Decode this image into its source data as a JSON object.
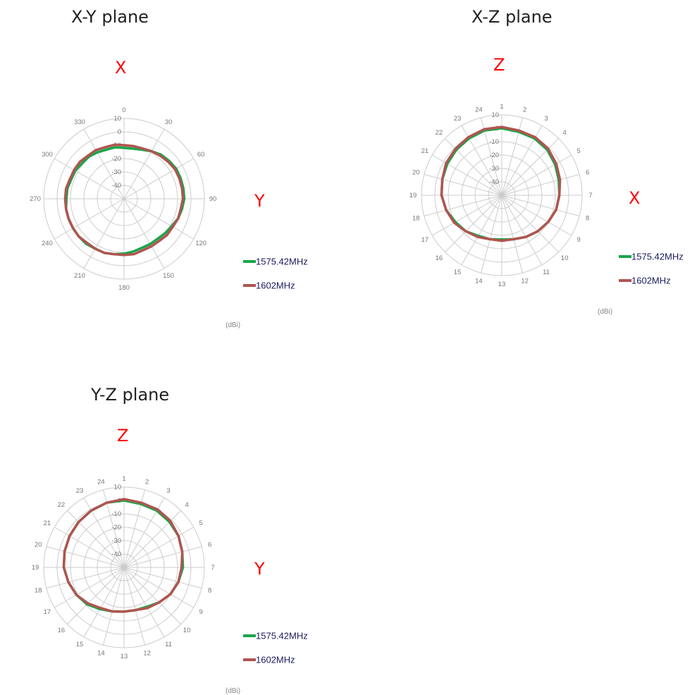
{
  "colors": {
    "series1": "#1aa54a",
    "series2": "#b05450",
    "axis_label": "#ff0000",
    "grid": "#cccccc"
  },
  "chart_data": [
    {
      "type": "polar-line",
      "title": "X-Y plane",
      "top_axis_label": "X",
      "right_axis_label": "Y",
      "unit": "(dBi)",
      "radial_ticks": [
        "10",
        "0",
        "-10",
        "-20",
        "-30",
        "-40"
      ],
      "r_range": [
        -50,
        10
      ],
      "angle_labels": [
        "0",
        "30",
        "60",
        "90",
        "120",
        "150",
        "180",
        "210",
        "240",
        "270",
        "300",
        "330"
      ],
      "series": [
        {
          "name": "1575.42MHz",
          "values": [
            -12,
            -12,
            -11,
            -9,
            -7,
            -6,
            -5,
            -5,
            -5,
            -5,
            -6,
            -7,
            -9,
            -10,
            -11,
            -11,
            -11,
            -10,
            -9,
            -8,
            -7,
            -7,
            -6,
            -6,
            -6,
            -6,
            -6,
            -7,
            -7,
            -8,
            -8,
            -9,
            -9,
            -10,
            -11,
            -11
          ]
        },
        {
          "name": "1602MHz",
          "values": [
            -10,
            -10,
            -10,
            -9,
            -8,
            -7,
            -6,
            -6,
            -6,
            -6,
            -7,
            -7,
            -8,
            -8,
            -9,
            -9,
            -9,
            -8,
            -8,
            -8,
            -7,
            -7,
            -7,
            -6,
            -6,
            -6,
            -6,
            -6,
            -6,
            -7,
            -7,
            -7,
            -8,
            -8,
            -9,
            -9
          ]
        }
      ]
    },
    {
      "type": "polar-line",
      "title": "X-Z plane",
      "top_axis_label": "Z",
      "right_axis_label": "X",
      "unit": "(dBi)",
      "radial_ticks": [
        "10",
        "0",
        "-10",
        "-20",
        "-30",
        "-40"
      ],
      "r_range": [
        -50,
        10
      ],
      "angle_labels": [
        "1",
        "2",
        "3",
        "4",
        "5",
        "6",
        "7",
        "8",
        "9",
        "10",
        "11",
        "12",
        "13",
        "14",
        "15",
        "16",
        "17",
        "18",
        "19",
        "20",
        "21",
        "22",
        "23",
        "24"
      ],
      "series": [
        {
          "name": "1575.42MHz",
          "values": [
            0,
            -1,
            -1,
            -2,
            -4,
            -6,
            -7,
            -8,
            -10,
            -12,
            -14,
            -16,
            -17,
            -16,
            -15,
            -12,
            -10,
            -7,
            -5,
            -4,
            -3,
            -2,
            -1,
            0
          ]
        },
        {
          "name": "1602MHz",
          "values": [
            1,
            0,
            0,
            -1,
            -3,
            -5,
            -7,
            -8,
            -10,
            -12,
            -14,
            -16,
            -16,
            -16,
            -14,
            -12,
            -9,
            -7,
            -5,
            -4,
            -2,
            -1,
            0,
            1
          ]
        }
      ]
    },
    {
      "type": "polar-line",
      "title": "Y-Z plane",
      "top_axis_label": "Z",
      "right_axis_label": "Y",
      "unit": "(dBi)",
      "radial_ticks": [
        "10",
        "0",
        "-10",
        "-20",
        "-30",
        "-40"
      ],
      "r_range": [
        -50,
        10
      ],
      "angle_labels": [
        "1",
        "2",
        "3",
        "4",
        "5",
        "6",
        "7",
        "8",
        "9",
        "10",
        "11",
        "12",
        "13",
        "14",
        "15",
        "16",
        "17",
        "18",
        "19",
        "20",
        "21",
        "22",
        "23",
        "24"
      ],
      "series": [
        {
          "name": "1575.42MHz",
          "values": [
            0,
            -1,
            -1,
            -2,
            -3,
            -5,
            -6,
            -8,
            -10,
            -13,
            -16,
            -17,
            -17,
            -16,
            -14,
            -11,
            -9,
            -7,
            -5,
            -4,
            -3,
            -2,
            -1,
            0
          ]
        },
        {
          "name": "1602MHz",
          "values": [
            1,
            0,
            0,
            -1,
            -3,
            -5,
            -7,
            -8,
            -10,
            -13,
            -15,
            -17,
            -17,
            -16,
            -15,
            -12,
            -9,
            -7,
            -5,
            -4,
            -3,
            -2,
            -1,
            0
          ]
        }
      ]
    }
  ]
}
